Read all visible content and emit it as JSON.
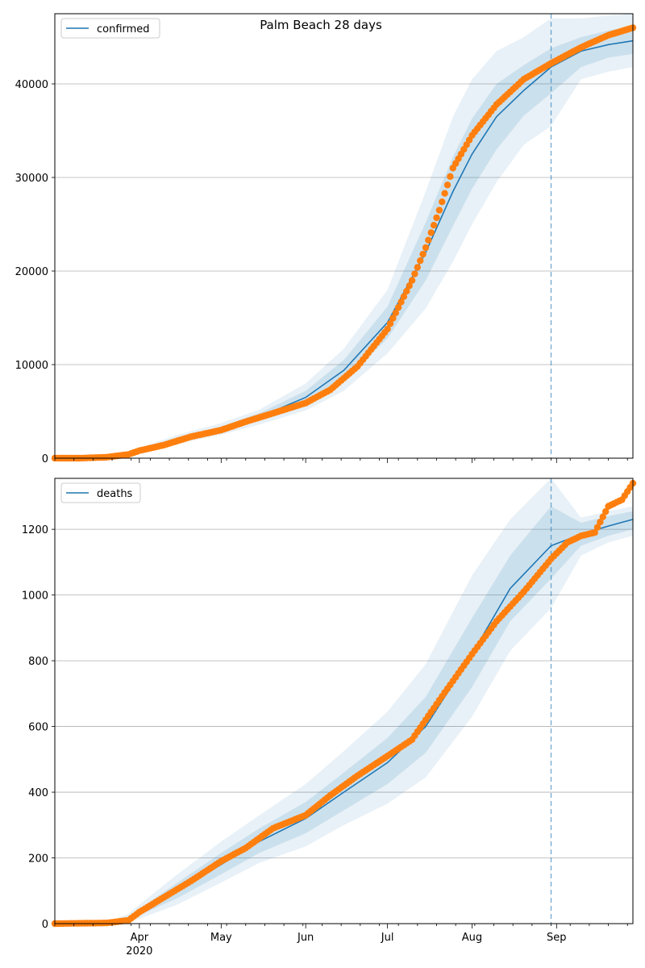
{
  "figure": {
    "title": "Palm Beach 28 days"
  },
  "colors": {
    "model_line": "#1f77b4",
    "observed": "#ff7f0e",
    "band": "#1f77b4",
    "grid": "#b0b0b0"
  },
  "x_axis": {
    "start": "2020-03-01",
    "end": "2020-09-29",
    "month_ticks": [
      {
        "date": "2020-04-01",
        "label": "Apr",
        "sublabel": "2020"
      },
      {
        "date": "2020-05-01",
        "label": "May",
        "sublabel": ""
      },
      {
        "date": "2020-06-01",
        "label": "Jun",
        "sublabel": ""
      },
      {
        "date": "2020-07-01",
        "label": "Jul",
        "sublabel": ""
      },
      {
        "date": "2020-08-01",
        "label": "Aug",
        "sublabel": ""
      },
      {
        "date": "2020-09-01",
        "label": "Sep",
        "sublabel": ""
      }
    ],
    "forecast_start": "2020-08-30"
  },
  "chart_data": [
    {
      "type": "line",
      "legend": "confirmed",
      "legend_position": "top-left",
      "grid": "horizontal",
      "ylim": [
        0,
        47500
      ],
      "yticks": [
        0,
        10000,
        20000,
        30000,
        40000
      ],
      "ytick_labels": [
        "0",
        "10000",
        "20000",
        "30000",
        "40000"
      ],
      "model": {
        "x": [
          "2020-03-01",
          "2020-03-15",
          "2020-03-25",
          "2020-04-01",
          "2020-04-15",
          "2020-05-01",
          "2020-05-15",
          "2020-06-01",
          "2020-06-15",
          "2020-07-01",
          "2020-07-15",
          "2020-07-25",
          "2020-08-01",
          "2020-08-10",
          "2020-08-20",
          "2020-08-30",
          "2020-09-10",
          "2020-09-20",
          "2020-09-29"
        ],
        "y": [
          0,
          50,
          200,
          800,
          2000,
          3100,
          4400,
          6500,
          9400,
          14500,
          22000,
          28500,
          32500,
          36500,
          39300,
          41800,
          43500,
          44200,
          44600
        ],
        "band_1": [
          0,
          60,
          260,
          950,
          2250,
          3400,
          4800,
          7200,
          10500,
          16200,
          25200,
          32200,
          36300,
          40000,
          42000,
          43800,
          45000,
          45700,
          46200
        ],
        "band_2": [
          0,
          80,
          330,
          1100,
          2500,
          3750,
          5200,
          8000,
          11700,
          18000,
          28500,
          36500,
          40500,
          43500,
          45000,
          47000,
          47000,
          47300,
          47500
        ],
        "band_1_low": [
          0,
          40,
          140,
          650,
          1750,
          2800,
          4000,
          5800,
          8300,
          12800,
          19000,
          24800,
          28800,
          33000,
          36600,
          39000,
          41800,
          42800,
          43200
        ],
        "band_2_low": [
          0,
          20,
          80,
          500,
          1550,
          2500,
          3600,
          5100,
          7200,
          11200,
          16000,
          21000,
          25000,
          29500,
          33500,
          35500,
          40500,
          41300,
          41800
        ]
      },
      "observed": {
        "x": [
          "2020-03-01",
          "2020-03-10",
          "2020-03-20",
          "2020-03-28",
          "2020-04-01",
          "2020-04-10",
          "2020-04-20",
          "2020-05-01",
          "2020-05-10",
          "2020-05-20",
          "2020-06-01",
          "2020-06-10",
          "2020-06-20",
          "2020-07-01",
          "2020-07-10",
          "2020-07-15",
          "2020-07-20",
          "2020-07-25",
          "2020-08-01",
          "2020-08-10",
          "2020-08-20",
          "2020-08-30",
          "2020-09-10",
          "2020-09-20",
          "2020-09-29"
        ],
        "y": [
          0,
          0,
          100,
          400,
          800,
          1400,
          2300,
          3000,
          3900,
          4800,
          5900,
          7300,
          9800,
          13800,
          19000,
          22500,
          26500,
          31000,
          34500,
          37800,
          40500,
          42200,
          43900,
          45200,
          46000
        ]
      }
    },
    {
      "type": "line",
      "legend": "deaths",
      "legend_position": "top-left",
      "grid": "horizontal",
      "ylim": [
        0,
        1355
      ],
      "yticks": [
        0,
        200,
        400,
        600,
        800,
        1000,
        1200
      ],
      "ytick_labels": [
        "0",
        "200",
        "400",
        "600",
        "800",
        "1000",
        "1200"
      ],
      "model": {
        "x": [
          "2020-03-01",
          "2020-03-20",
          "2020-03-28",
          "2020-04-01",
          "2020-04-15",
          "2020-05-01",
          "2020-05-15",
          "2020-06-01",
          "2020-06-15",
          "2020-07-01",
          "2020-07-15",
          "2020-08-01",
          "2020-08-15",
          "2020-08-30",
          "2020-09-10",
          "2020-09-20",
          "2020-09-29"
        ],
        "y": [
          0,
          2,
          15,
          35,
          100,
          180,
          250,
          320,
          400,
          490,
          600,
          820,
          1020,
          1150,
          1185,
          1210,
          1230
        ],
        "band_1": [
          0,
          3,
          22,
          45,
          125,
          215,
          290,
          370,
          460,
          565,
          690,
          930,
          1120,
          1270,
          1220,
          1240,
          1255
        ],
        "band_2": [
          0,
          4,
          30,
          58,
          150,
          250,
          330,
          425,
          525,
          645,
          790,
          1060,
          1230,
          1355,
          1235,
          1255,
          1270
        ],
        "band_1_low": [
          0,
          1,
          10,
          25,
          78,
          150,
          215,
          275,
          345,
          425,
          520,
          720,
          920,
          1050,
          1150,
          1180,
          1200
        ],
        "band_2_low": [
          0,
          0,
          6,
          15,
          58,
          125,
          185,
          235,
          300,
          365,
          445,
          630,
          830,
          960,
          1120,
          1160,
          1180
        ]
      },
      "observed": {
        "x": [
          "2020-03-01",
          "2020-03-20",
          "2020-03-28",
          "2020-04-01",
          "2020-04-10",
          "2020-04-20",
          "2020-05-01",
          "2020-05-10",
          "2020-05-20",
          "2020-06-01",
          "2020-06-10",
          "2020-06-20",
          "2020-07-01",
          "2020-07-10",
          "2020-07-20",
          "2020-08-01",
          "2020-08-10",
          "2020-08-20",
          "2020-08-30",
          "2020-09-05",
          "2020-09-10",
          "2020-09-15",
          "2020-09-20",
          "2020-09-25",
          "2020-09-29"
        ],
        "y": [
          0,
          2,
          10,
          35,
          80,
          130,
          190,
          230,
          290,
          330,
          390,
          450,
          510,
          560,
          680,
          820,
          920,
          1010,
          1110,
          1160,
          1180,
          1190,
          1270,
          1290,
          1340
        ]
      }
    }
  ]
}
